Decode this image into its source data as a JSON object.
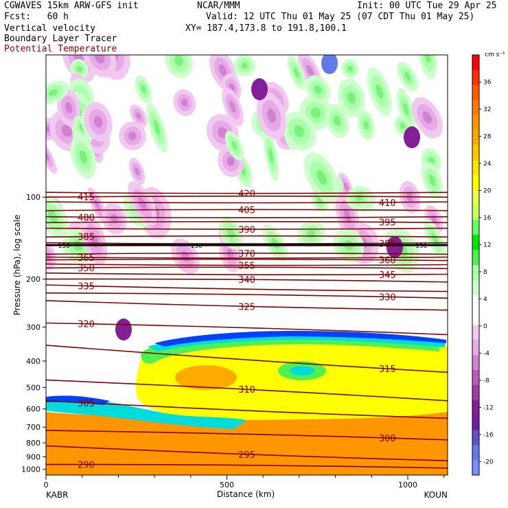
{
  "header": {
    "model": "CGWAVES 15km ARW-GFS init",
    "org": "NCAR/MMM",
    "init": "Init: 00 UTC Tue 29 Apr 25",
    "fcst": "Fcst:   60 h",
    "valid": "Valid: 12 UTC Thu 01 May 25 (07 CDT Thu 01 May 25)",
    "field1": "Vertical velocity",
    "xy": "XY= 187.4,173.8 to 191.8,100.1",
    "field2": "Boundary Layer Tracer",
    "field3": "Potential Temperature",
    "field3_color": "#800000"
  },
  "chart_data": {
    "type": "heatmap",
    "ylabel": "Pressure (hPa), log scale",
    "xlabel": "Distance (km)",
    "x_ticks": [
      "0",
      "500",
      "1000"
    ],
    "x_tick_values": [
      0,
      500,
      1000
    ],
    "xlim": [
      0,
      1110
    ],
    "y_ticks": [
      "100",
      "200",
      "300",
      "400",
      "500",
      "600",
      "700",
      "800",
      "900",
      "1000"
    ],
    "y_tick_values": [
      100,
      200,
      300,
      400,
      500,
      600,
      700,
      800,
      900,
      1000
    ],
    "ylim": [
      1050,
      30
    ],
    "y_scale": "log",
    "endpoints": {
      "left": "KABR",
      "right": "KOUN"
    },
    "colorbar": {
      "unit": "cm s⁻¹",
      "labels": [
        "36",
        "32",
        "28",
        "24",
        "20",
        "16",
        "12",
        "8",
        "4",
        "0",
        "-4",
        "-8",
        "-12",
        "-16",
        "-20"
      ],
      "label_values": [
        36,
        32,
        28,
        24,
        20,
        16,
        12,
        8,
        4,
        0,
        -4,
        -8,
        -12,
        -16,
        -20
      ],
      "colors": [
        "#ff0000",
        "#ff3000",
        "#ff5a00",
        "#ff7800",
        "#ff9600",
        "#ffaa00",
        "#ffc800",
        "#ffe600",
        "#ffff00",
        "#e6ff50",
        "#c8ff64",
        "#64ff64",
        "#00e600",
        "#50f050",
        "#aaffaa",
        "#ccffcc",
        "#ffffff",
        "#ffffff",
        "#f0c8f0",
        "#e6aae6",
        "#d282d2",
        "#be5abe",
        "#a03ca0",
        "#821e96",
        "#6e1ea0",
        "#6450c8",
        "#6478e6",
        "#7890ff"
      ]
    },
    "theta_contours": [
      {
        "value": 290,
        "label": "290",
        "p_left": 960,
        "p_right": 990
      },
      {
        "value": 295,
        "label": "295",
        "p_left": 820,
        "p_right": 930
      },
      {
        "value": 300,
        "label": "300",
        "p_left": 720,
        "p_right": 780
      },
      {
        "value": 305,
        "label": "305",
        "p_left": 560,
        "p_right": 650
      },
      {
        "value": 310,
        "label": "310",
        "p_left": 470,
        "p_right": 560
      },
      {
        "value": 315,
        "label": "315",
        "p_left": 350,
        "p_right": 440
      },
      {
        "value": 320,
        "label": "320",
        "p_left": 290,
        "p_right": 320
      },
      {
        "value": 325,
        "label": "325",
        "p_left": 240,
        "p_right": 260
      },
      {
        "value": 330,
        "label": "330",
        "p_left": 225,
        "p_right": 235
      },
      {
        "value": 335,
        "label": "335",
        "p_left": 210,
        "p_right": 222
      },
      {
        "value": 340,
        "label": "340",
        "p_left": 200,
        "p_right": 205
      },
      {
        "value": 345,
        "label": "345",
        "p_left": 190,
        "p_right": 192
      },
      {
        "value": 350,
        "label": "350",
        "p_left": 182,
        "p_right": 183
      },
      {
        "value": 355,
        "label": "355",
        "p_left": 176,
        "p_right": 177
      },
      {
        "value": 360,
        "label": "360",
        "p_left": 170,
        "p_right": 171
      },
      {
        "value": 365,
        "label": "365",
        "p_left": 166,
        "p_right": 166
      },
      {
        "value": 370,
        "label": "370",
        "p_left": 162,
        "p_right": 162
      },
      {
        "value": 380,
        "label": "380",
        "p_left": 147,
        "p_right": 147
      },
      {
        "value": 385,
        "label": "385",
        "p_left": 140,
        "p_right": 140
      },
      {
        "value": 390,
        "label": "390",
        "p_left": 130,
        "p_right": 130
      },
      {
        "value": 395,
        "label": "395",
        "p_left": 124,
        "p_right": 124
      },
      {
        "value": 400,
        "label": "400",
        "p_left": 118,
        "p_right": 118
      },
      {
        "value": 405,
        "label": "405",
        "p_left": 112,
        "p_right": 112
      },
      {
        "value": 410,
        "label": "410",
        "p_left": 104,
        "p_right": 104
      },
      {
        "value": 415,
        "label": "415",
        "p_left": 100,
        "p_right": 100
      },
      {
        "value": 420,
        "label": "420",
        "p_left": 96,
        "p_right": 96
      }
    ],
    "tracer_line": {
      "label": "150",
      "p": 150
    }
  }
}
